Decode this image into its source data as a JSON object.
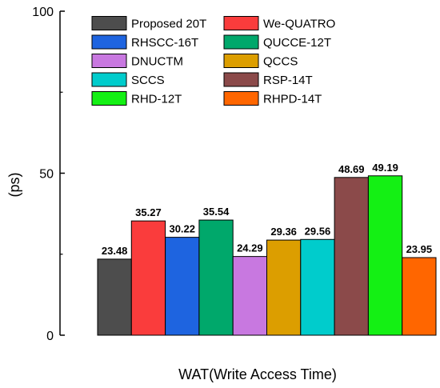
{
  "chart_data": {
    "type": "bar",
    "xlabel": "WAT(Write Access Time)",
    "ylabel": "(ps)",
    "ylim": [
      0,
      100
    ],
    "yticks": [
      0,
      50,
      100
    ],
    "legend_position": "top-left",
    "grid": false,
    "bars": [
      {
        "name": "Proposed 20T",
        "value": 23.48,
        "label": "23.48",
        "color": "#4d4d4d"
      },
      {
        "name": "We-QUATRO",
        "value": 35.27,
        "label": "35.27",
        "color": "#fa3c3c"
      },
      {
        "name": "RHSCC-16T",
        "value": 30.22,
        "label": "30.22",
        "color": "#1e64e0"
      },
      {
        "name": "QUCCE-12T",
        "value": 35.54,
        "label": "35.54",
        "color": "#00a86b"
      },
      {
        "name": "DNUCTM",
        "value": 24.29,
        "label": "24.29",
        "color": "#c878e0"
      },
      {
        "name": "QCCS",
        "value": 29.36,
        "label": "29.36",
        "color": "#dc9e00"
      },
      {
        "name": "SCCS",
        "value": 29.56,
        "label": "29.56",
        "color": "#00cccc"
      },
      {
        "name": "RSP-14T",
        "value": 48.69,
        "label": "48.69",
        "color": "#8b4a4a"
      },
      {
        "name": "RHD-12T",
        "value": 49.19,
        "label": "49.19",
        "color": "#14f014"
      },
      {
        "name": "RHPD-14T",
        "value": 23.95,
        "label": "23.95",
        "color": "#ff6600"
      }
    ],
    "legend_order": [
      0,
      1,
      2,
      3,
      4,
      5,
      6,
      7,
      8,
      9
    ]
  }
}
